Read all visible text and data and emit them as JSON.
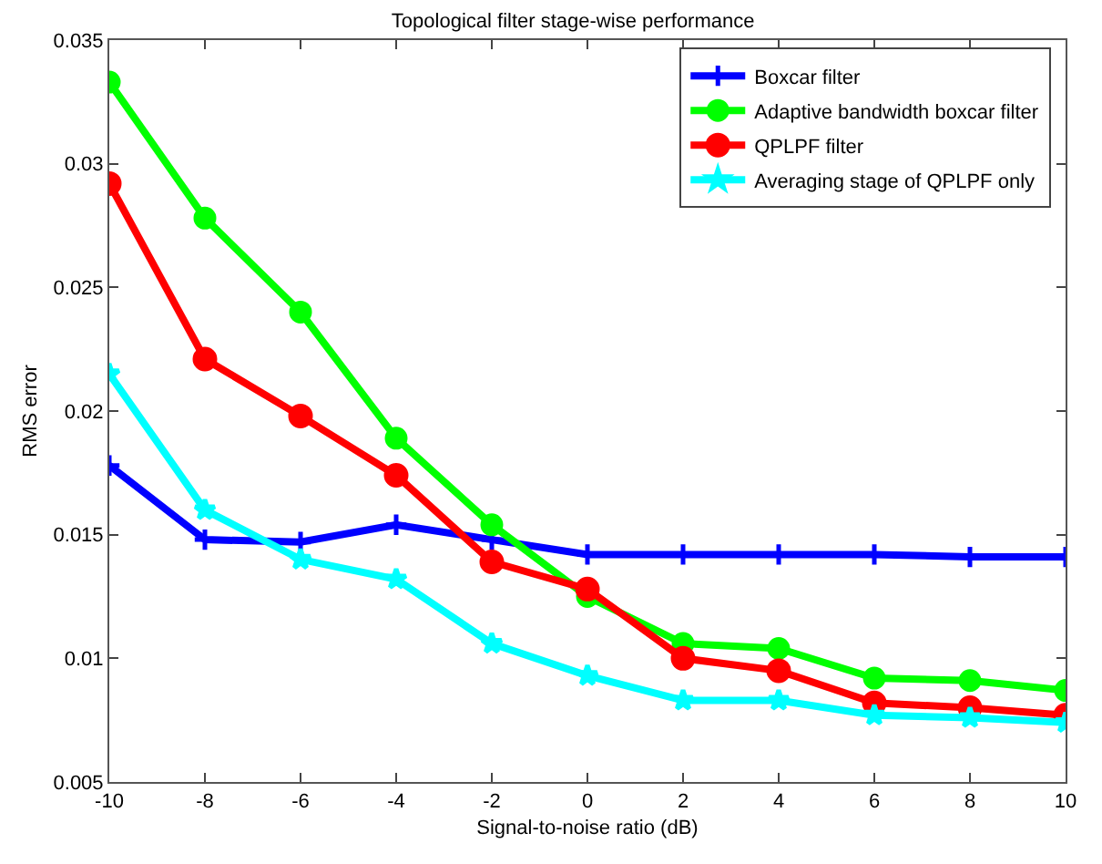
{
  "chart_data": {
    "type": "line",
    "title": "Topological filter stage-wise performance",
    "xlabel": "Signal-to-noise ratio (dB)",
    "ylabel": "RMS error",
    "x": [
      -10,
      -8,
      -6,
      -4,
      -2,
      0,
      2,
      4,
      6,
      8,
      10
    ],
    "xlim": [
      -10,
      10
    ],
    "xticks": [
      -10,
      -8,
      -6,
      -4,
      -2,
      0,
      2,
      4,
      6,
      8,
      10
    ],
    "ylim": [
      0.005,
      0.035
    ],
    "yticks": [
      0.005,
      0.01,
      0.015,
      0.02,
      0.025,
      0.03,
      0.035
    ],
    "grid": false,
    "legend": "top right",
    "line_style": "solid",
    "series": [
      {
        "name": "Boxcar filter",
        "color": "#0000ff",
        "marker": "cross",
        "values": [
          0.0178,
          0.0148,
          0.0147,
          0.0154,
          0.0148,
          0.0142,
          0.0142,
          0.0142,
          0.0142,
          0.0141,
          0.0141
        ]
      },
      {
        "name": "Adaptive bandwidth boxcar filter",
        "color": "#00ff00",
        "marker": "circle",
        "values": [
          0.0333,
          0.0278,
          0.024,
          0.0189,
          0.0154,
          0.0125,
          0.0106,
          0.0104,
          0.0092,
          0.0091,
          0.0087
        ]
      },
      {
        "name": "QPLPF filter",
        "color": "#ff0000",
        "marker": "circle",
        "values": [
          0.0292,
          0.0221,
          0.0198,
          0.0174,
          0.0139,
          0.0128,
          0.01,
          0.0095,
          0.0082,
          0.008,
          0.0077
        ]
      },
      {
        "name": "Averaging stage of QPLPF only",
        "color": "#00ffff",
        "marker": "star",
        "values": [
          0.0215,
          0.016,
          0.014,
          0.0132,
          0.0106,
          0.0093,
          0.0083,
          0.0083,
          0.0077,
          0.0076,
          0.0074
        ]
      }
    ]
  }
}
